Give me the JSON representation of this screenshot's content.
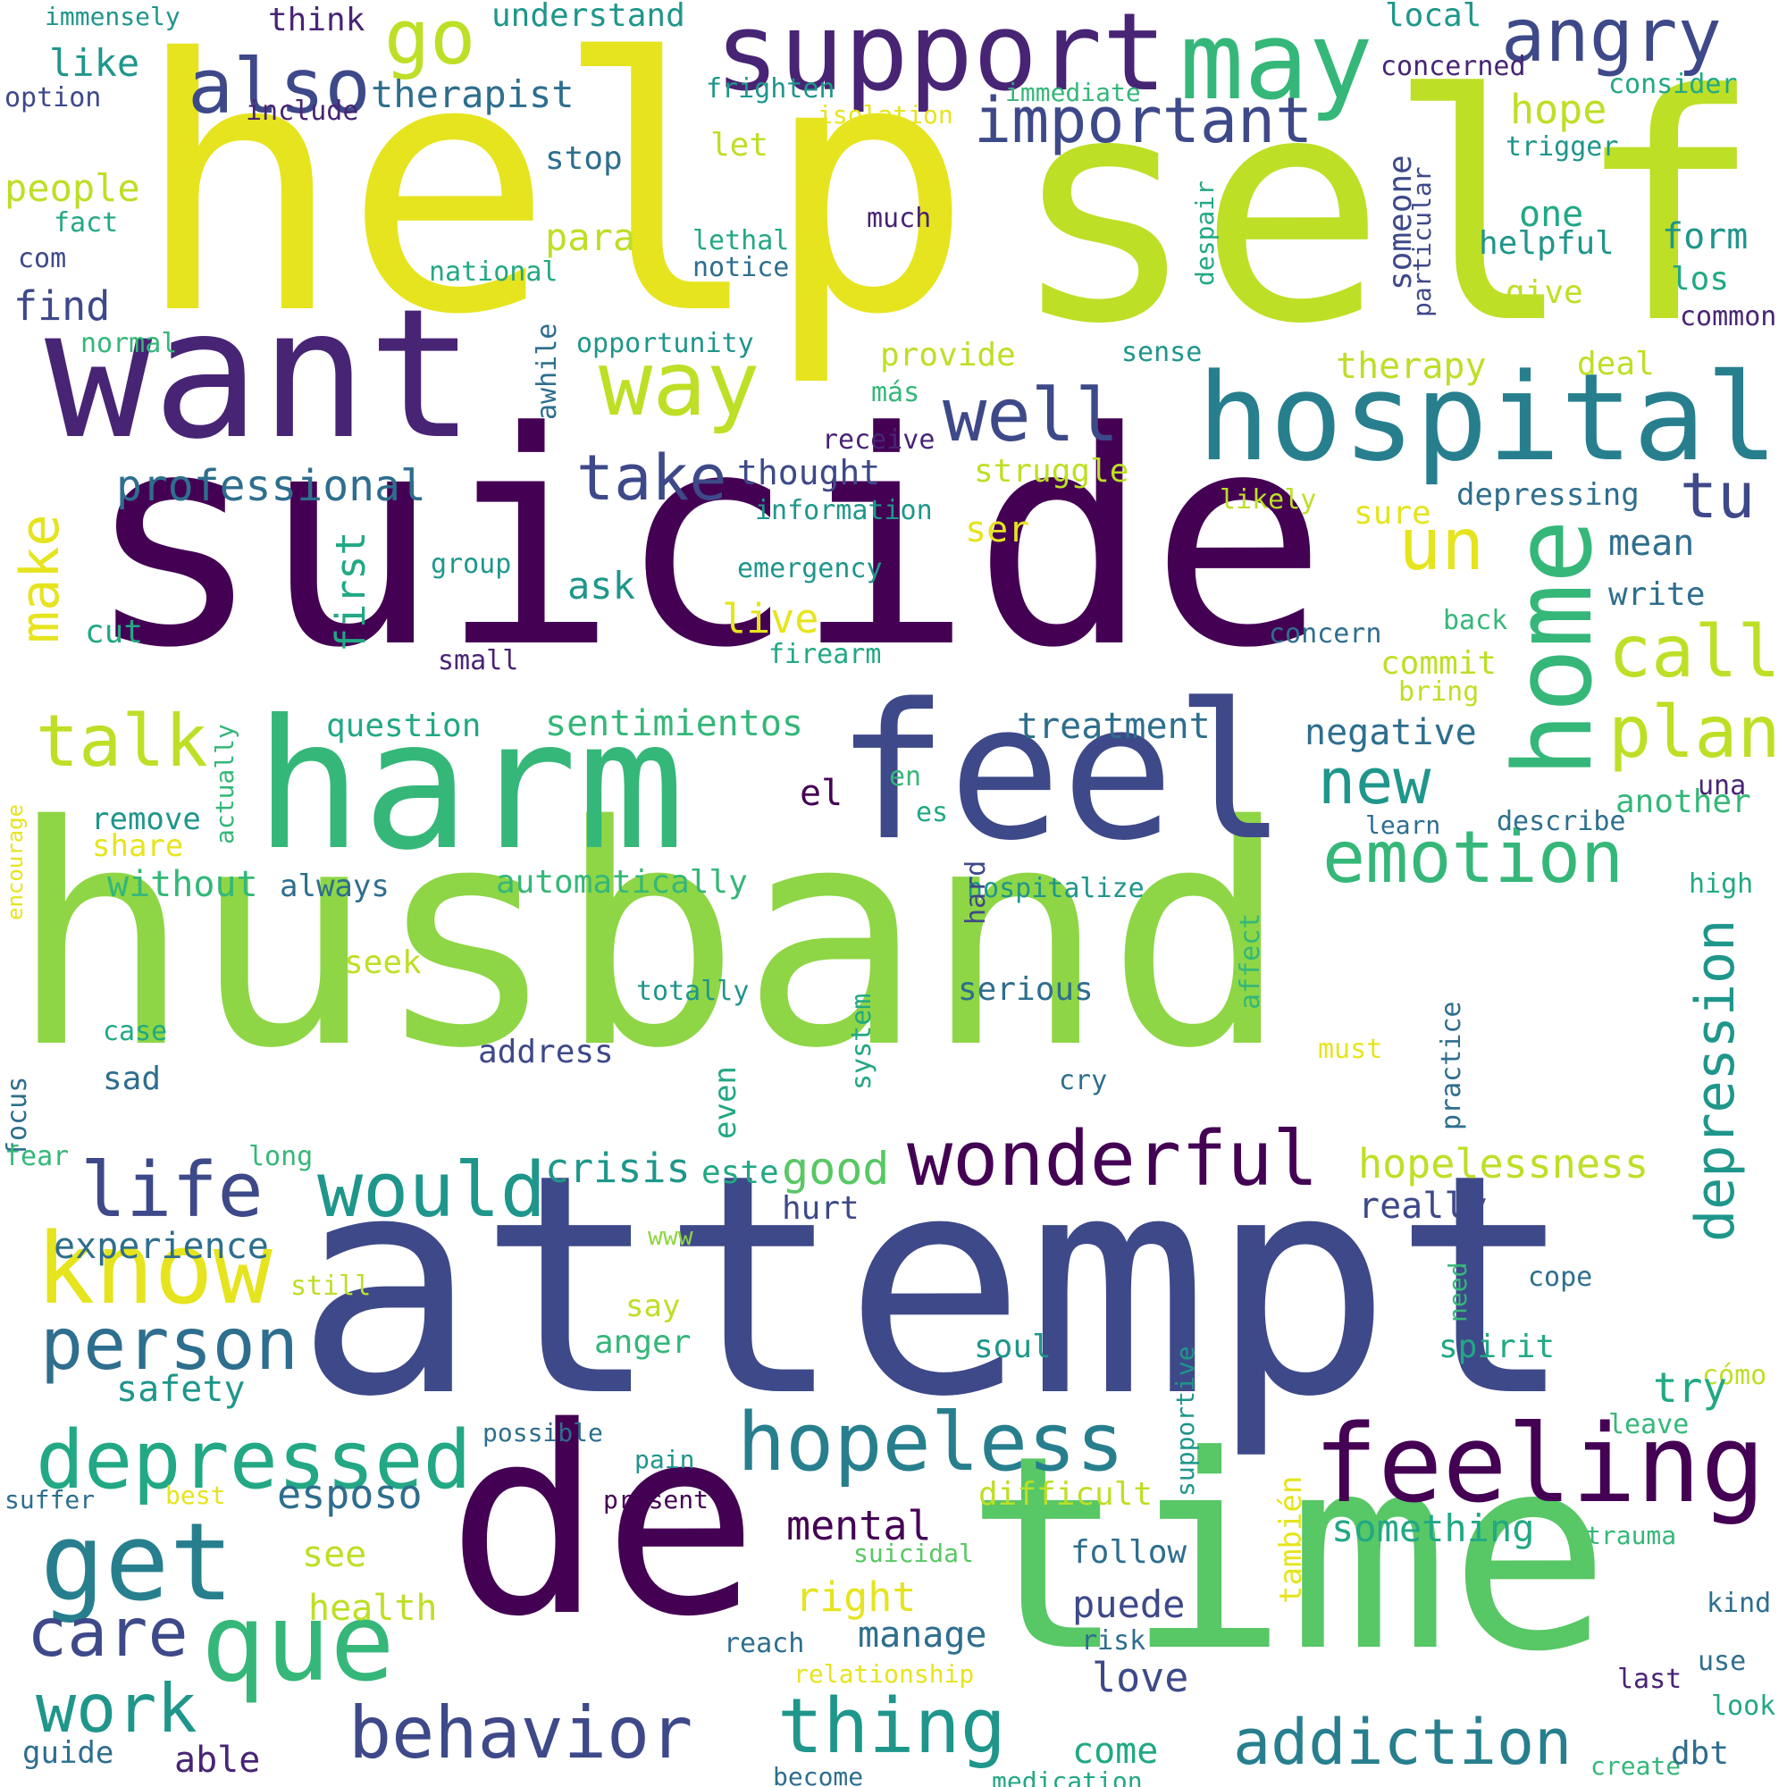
{
  "palette": {
    "yellow": "#e6e41e",
    "lime": "#bddf26",
    "green": "#8ed645",
    "mint": "#58c765",
    "emerald": "#35b779",
    "teal": "#22a884",
    "cyan": "#1f968b",
    "blue": "#277f8e",
    "slate": "#2e6e8e",
    "indigo": "#3e4989",
    "violet": "#482475",
    "plum": "#440154"
  },
  "words": [
    {
      "text": "help"
    },
    {
      "text": "self"
    },
    {
      "text": "suicide"
    },
    {
      "text": "husband"
    },
    {
      "text": "attempt"
    },
    {
      "text": "de"
    },
    {
      "text": "time"
    },
    {
      "text": "want"
    },
    {
      "text": "harm"
    },
    {
      "text": "feel"
    },
    {
      "text": "support"
    },
    {
      "text": "may"
    },
    {
      "text": "angry"
    },
    {
      "text": "hospital"
    },
    {
      "text": "way"
    },
    {
      "text": "well"
    },
    {
      "text": "go"
    },
    {
      "text": "also"
    },
    {
      "text": "important"
    },
    {
      "text": "take"
    },
    {
      "text": "tu"
    },
    {
      "text": "home"
    },
    {
      "text": "un"
    },
    {
      "text": "call"
    },
    {
      "text": "plan"
    },
    {
      "text": "talk"
    },
    {
      "text": "make"
    },
    {
      "text": "emotion"
    },
    {
      "text": "new"
    },
    {
      "text": "depression"
    },
    {
      "text": "wonderful"
    },
    {
      "text": "feeling"
    },
    {
      "text": "know"
    },
    {
      "text": "life"
    },
    {
      "text": "would"
    },
    {
      "text": "get"
    },
    {
      "text": "person"
    },
    {
      "text": "depressed"
    },
    {
      "text": "hopeless"
    },
    {
      "text": "que"
    },
    {
      "text": "care"
    },
    {
      "text": "work"
    },
    {
      "text": "behavior"
    },
    {
      "text": "thing"
    },
    {
      "text": "addiction"
    },
    {
      "text": "therapist"
    },
    {
      "text": "professional"
    },
    {
      "text": "immensely"
    },
    {
      "text": "think"
    },
    {
      "text": "understand"
    },
    {
      "text": "local"
    },
    {
      "text": "concerned"
    },
    {
      "text": "like"
    },
    {
      "text": "frighten"
    },
    {
      "text": "immediate"
    },
    {
      "text": "consider"
    },
    {
      "text": "option"
    },
    {
      "text": "include"
    },
    {
      "text": "isolation"
    },
    {
      "text": "hope"
    },
    {
      "text": "let"
    },
    {
      "text": "trigger"
    },
    {
      "text": "stop"
    },
    {
      "text": "people"
    },
    {
      "text": "much"
    },
    {
      "text": "fact"
    },
    {
      "text": "para"
    },
    {
      "text": "someone"
    },
    {
      "text": "despair"
    },
    {
      "text": "particular"
    },
    {
      "text": "one"
    },
    {
      "text": "form"
    },
    {
      "text": "lethal"
    },
    {
      "text": "helpful"
    },
    {
      "text": "com"
    },
    {
      "text": "notice"
    },
    {
      "text": "national"
    },
    {
      "text": "los"
    },
    {
      "text": "find"
    },
    {
      "text": "give"
    },
    {
      "text": "awhile"
    },
    {
      "text": "common"
    },
    {
      "text": "normal"
    },
    {
      "text": "opportunity"
    },
    {
      "text": "sense"
    },
    {
      "text": "provide"
    },
    {
      "text": "therapy"
    },
    {
      "text": "deal"
    },
    {
      "text": "más"
    },
    {
      "text": "receive"
    },
    {
      "text": "thought"
    },
    {
      "text": "struggle"
    },
    {
      "text": "likely"
    },
    {
      "text": "information"
    },
    {
      "text": "sure"
    },
    {
      "text": "depressing"
    },
    {
      "text": "ser"
    },
    {
      "text": "mean"
    },
    {
      "text": "first"
    },
    {
      "text": "group"
    },
    {
      "text": "emergency"
    },
    {
      "text": "write"
    },
    {
      "text": "ask"
    },
    {
      "text": "live"
    },
    {
      "text": "back"
    },
    {
      "text": "cut"
    },
    {
      "text": "concern"
    },
    {
      "text": "firearm"
    },
    {
      "text": "small"
    },
    {
      "text": "commit"
    },
    {
      "text": "bring"
    },
    {
      "text": "question"
    },
    {
      "text": "sentimientos"
    },
    {
      "text": "treatment"
    },
    {
      "text": "negative"
    },
    {
      "text": "una"
    },
    {
      "text": "en"
    },
    {
      "text": "el"
    },
    {
      "text": "es"
    },
    {
      "text": "encourage"
    },
    {
      "text": "actually"
    },
    {
      "text": "another"
    },
    {
      "text": "remove"
    },
    {
      "text": "learn"
    },
    {
      "text": "describe"
    },
    {
      "text": "share"
    },
    {
      "text": "without"
    },
    {
      "text": "always"
    },
    {
      "text": "automatically"
    },
    {
      "text": "hospitalize"
    },
    {
      "text": "hard"
    },
    {
      "text": "high"
    },
    {
      "text": "affect"
    },
    {
      "text": "seek"
    },
    {
      "text": "serious"
    },
    {
      "text": "totally"
    },
    {
      "text": "practice"
    },
    {
      "text": "case"
    },
    {
      "text": "system"
    },
    {
      "text": "must"
    },
    {
      "text": "address"
    },
    {
      "text": "cry"
    },
    {
      "text": "focus"
    },
    {
      "text": "sad"
    },
    {
      "text": "even"
    },
    {
      "text": "fear"
    },
    {
      "text": "long"
    },
    {
      "text": "crisis"
    },
    {
      "text": "este"
    },
    {
      "text": "good"
    },
    {
      "text": "hopelessness"
    },
    {
      "text": "experience"
    },
    {
      "text": "hurt"
    },
    {
      "text": "really"
    },
    {
      "text": "www"
    },
    {
      "text": "still"
    },
    {
      "text": "need"
    },
    {
      "text": "cope"
    },
    {
      "text": "say"
    },
    {
      "text": "anger"
    },
    {
      "text": "soul"
    },
    {
      "text": "spirit"
    },
    {
      "text": "safety"
    },
    {
      "text": "cómo"
    },
    {
      "text": "try"
    },
    {
      "text": "supportive"
    },
    {
      "text": "possible"
    },
    {
      "text": "leave"
    },
    {
      "text": "esposo"
    },
    {
      "text": "pain"
    },
    {
      "text": "suffer"
    },
    {
      "text": "best"
    },
    {
      "text": "present"
    },
    {
      "text": "difficult"
    },
    {
      "text": "mental"
    },
    {
      "text": "something"
    },
    {
      "text": "trauma"
    },
    {
      "text": "follow"
    },
    {
      "text": "see"
    },
    {
      "text": "suicidal"
    },
    {
      "text": "también"
    },
    {
      "text": "health"
    },
    {
      "text": "right"
    },
    {
      "text": "puede"
    },
    {
      "text": "kind"
    },
    {
      "text": "manage"
    },
    {
      "text": "risk"
    },
    {
      "text": "reach"
    },
    {
      "text": "relationship"
    },
    {
      "text": "love"
    },
    {
      "text": "use"
    },
    {
      "text": "last"
    },
    {
      "text": "look"
    },
    {
      "text": "guide"
    },
    {
      "text": "able"
    },
    {
      "text": "come"
    },
    {
      "text": "create"
    },
    {
      "text": "dbt"
    },
    {
      "text": "become"
    },
    {
      "text": "medication"
    }
  ]
}
